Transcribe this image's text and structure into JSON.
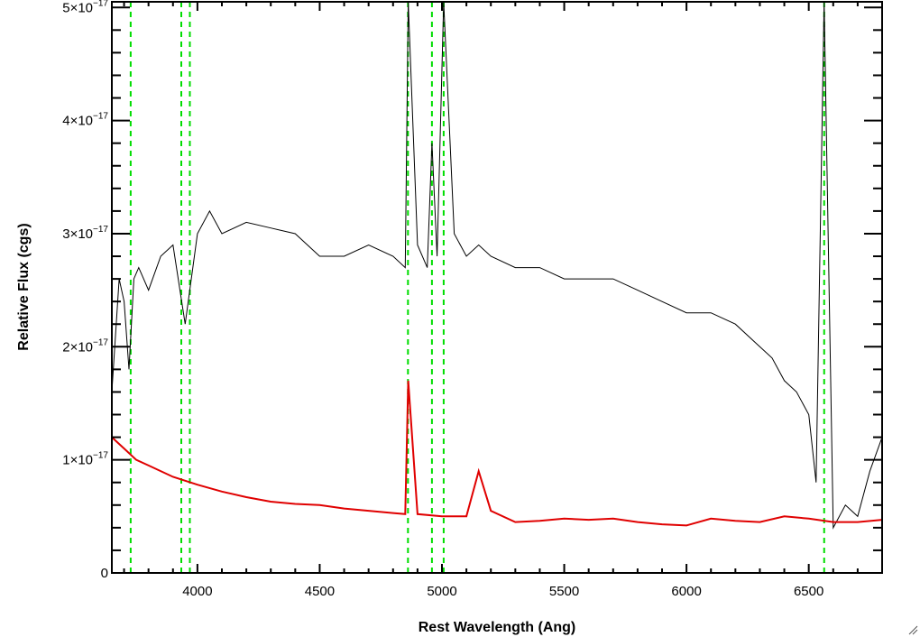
{
  "chart_data": {
    "type": "line",
    "title": "",
    "xlabel": "Rest Wavelength (Ang)",
    "ylabel": "Relative Flux (cgs)",
    "xlim": [
      3650,
      6800
    ],
    "ylim": [
      0,
      5.05e-17
    ],
    "x_ticks": [
      {
        "value": 4000,
        "label": "4000"
      },
      {
        "value": 4500,
        "label": "4500"
      },
      {
        "value": 5000,
        "label": "5000"
      },
      {
        "value": 5500,
        "label": "5500"
      },
      {
        "value": 6000,
        "label": "6000"
      },
      {
        "value": 6500,
        "label": "6500"
      }
    ],
    "y_ticks": [
      {
        "value": 0,
        "mantissa": "0",
        "exponent": ""
      },
      {
        "value": 1e-17,
        "mantissa": "1×10",
        "exponent": "−17"
      },
      {
        "value": 2e-17,
        "mantissa": "2×10",
        "exponent": "−17"
      },
      {
        "value": 3e-17,
        "mantissa": "3×10",
        "exponent": "−17"
      },
      {
        "value": 4e-17,
        "mantissa": "4×10",
        "exponent": "−17"
      },
      {
        "value": 5e-17,
        "mantissa": "5×10",
        "exponent": "−17"
      }
    ],
    "grid": false,
    "series": [
      {
        "kind": "spectrum",
        "color": "#000000",
        "x": [
          3650,
          3680,
          3700,
          3720,
          3740,
          3760,
          3800,
          3850,
          3900,
          3950,
          4000,
          4050,
          4100,
          4200,
          4300,
          4400,
          4500,
          4600,
          4700,
          4800,
          4850,
          4862,
          4900,
          4940,
          4959,
          4980,
          5007,
          5050,
          5100,
          5150,
          5200,
          5300,
          5400,
          5500,
          5600,
          5700,
          5800,
          5900,
          6000,
          6100,
          6200,
          6300,
          6350,
          6400,
          6450,
          6500,
          6530,
          6563,
          6600,
          6650,
          6700,
          6750,
          6800
        ],
        "y": [
          1.6e-17,
          2.6e-17,
          2.4e-17,
          1.8e-17,
          2.6e-17,
          2.7e-17,
          2.5e-17,
          2.8e-17,
          2.9e-17,
          2.2e-17,
          3e-17,
          3.2e-17,
          3e-17,
          3.1e-17,
          3.05e-17,
          3e-17,
          2.8e-17,
          2.8e-17,
          2.9e-17,
          2.8e-17,
          2.7e-17,
          5.1e-17,
          2.9e-17,
          2.7e-17,
          3.8e-17,
          2.8e-17,
          5.1e-17,
          3e-17,
          2.8e-17,
          2.9e-17,
          2.8e-17,
          2.7e-17,
          2.7e-17,
          2.6e-17,
          2.6e-17,
          2.6e-17,
          2.5e-17,
          2.4e-17,
          2.3e-17,
          2.3e-17,
          2.2e-17,
          2e-17,
          1.9e-17,
          1.7e-17,
          1.6e-17,
          1.4e-17,
          8e-18,
          5.1e-17,
          4e-18,
          6e-18,
          5e-18,
          9e-18,
          1.2e-17
        ]
      },
      {
        "kind": "error",
        "color": "#e00000",
        "x": [
          3650,
          3700,
          3750,
          3800,
          3900,
          4000,
          4100,
          4200,
          4300,
          4400,
          4500,
          4600,
          4700,
          4800,
          4850,
          4862,
          4900,
          5000,
          5100,
          5150,
          5200,
          5300,
          5400,
          5500,
          5600,
          5700,
          5800,
          5900,
          6000,
          6100,
          6200,
          6300,
          6400,
          6500,
          6600,
          6700,
          6800
        ],
        "y": [
          1.2e-17,
          1.1e-17,
          1e-17,
          9.5e-18,
          8.5e-18,
          7.8e-18,
          7.2e-18,
          6.7e-18,
          6.3e-18,
          6.1e-18,
          6e-18,
          5.7e-18,
          5.5e-18,
          5.3e-18,
          5.2e-18,
          1.7e-17,
          5.2e-18,
          5e-18,
          5e-18,
          9e-18,
          5.5e-18,
          4.5e-18,
          4.6e-18,
          4.8e-18,
          4.7e-18,
          4.8e-18,
          4.5e-18,
          4.3e-18,
          4.2e-18,
          4.8e-18,
          4.6e-18,
          4.5e-18,
          5e-18,
          4.8e-18,
          4.5e-18,
          4.5e-18,
          4.7e-18
        ]
      }
    ],
    "reference_lines": {
      "color": "#00dd00",
      "style": "dashed",
      "x": [
        3727,
        3934,
        3969,
        4861,
        4959,
        5007,
        6563
      ]
    }
  }
}
